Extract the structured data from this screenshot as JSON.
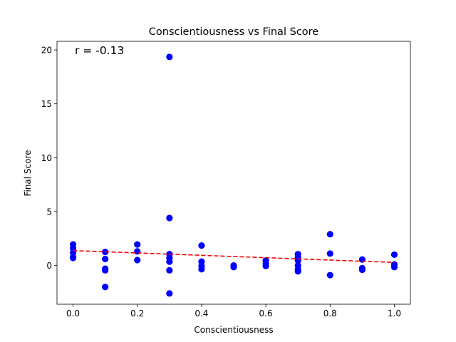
{
  "chart_data": {
    "type": "scatter",
    "title": "Conscientiousness vs Final Score",
    "xlabel": "Conscientiousness",
    "ylabel": "Final Score",
    "annotation": "r = -0.13",
    "xlim": [
      -0.05,
      1.05
    ],
    "ylim": [
      -3.6,
      20.8
    ],
    "xticks": [
      0.0,
      0.2,
      0.4,
      0.6,
      0.8,
      1.0
    ],
    "xtick_labels": [
      "0.0",
      "0.2",
      "0.4",
      "0.6",
      "0.8",
      "1.0"
    ],
    "yticks": [
      0,
      5,
      10,
      15,
      20
    ],
    "ytick_labels": [
      "0",
      "5",
      "10",
      "15",
      "20"
    ],
    "grid": false,
    "colors": {
      "points": "#0000ff",
      "trend": "#ff0000"
    },
    "points": [
      {
        "x": 0.0,
        "y": 1.95
      },
      {
        "x": 0.0,
        "y": 1.6
      },
      {
        "x": 0.0,
        "y": 1.2
      },
      {
        "x": 0.0,
        "y": 0.8
      },
      {
        "x": 0.0,
        "y": 0.7
      },
      {
        "x": 0.1,
        "y": 1.25
      },
      {
        "x": 0.1,
        "y": 0.6
      },
      {
        "x": 0.1,
        "y": -0.3
      },
      {
        "x": 0.1,
        "y": -0.45
      },
      {
        "x": 0.1,
        "y": -2.0
      },
      {
        "x": 0.2,
        "y": 1.95
      },
      {
        "x": 0.2,
        "y": 1.3
      },
      {
        "x": 0.2,
        "y": 0.5
      },
      {
        "x": 0.3,
        "y": 19.35
      },
      {
        "x": 0.3,
        "y": 4.4
      },
      {
        "x": 0.3,
        "y": 1.05
      },
      {
        "x": 0.3,
        "y": 0.7
      },
      {
        "x": 0.3,
        "y": 0.35
      },
      {
        "x": 0.3,
        "y": -0.45
      },
      {
        "x": 0.3,
        "y": -2.6
      },
      {
        "x": 0.4,
        "y": 1.85
      },
      {
        "x": 0.4,
        "y": 0.35
      },
      {
        "x": 0.4,
        "y": -0.05
      },
      {
        "x": 0.4,
        "y": -0.35
      },
      {
        "x": 0.5,
        "y": 0.0
      },
      {
        "x": 0.5,
        "y": -0.15
      },
      {
        "x": 0.6,
        "y": 0.45
      },
      {
        "x": 0.6,
        "y": 0.15
      },
      {
        "x": 0.6,
        "y": -0.05
      },
      {
        "x": 0.7,
        "y": 1.05
      },
      {
        "x": 0.7,
        "y": 0.75
      },
      {
        "x": 0.7,
        "y": 0.45
      },
      {
        "x": 0.7,
        "y": 0.0
      },
      {
        "x": 0.7,
        "y": -0.35
      },
      {
        "x": 0.7,
        "y": -0.55
      },
      {
        "x": 0.8,
        "y": 2.9
      },
      {
        "x": 0.8,
        "y": 1.1
      },
      {
        "x": 0.8,
        "y": -0.9
      },
      {
        "x": 0.9,
        "y": 0.55
      },
      {
        "x": 0.9,
        "y": -0.25
      },
      {
        "x": 0.9,
        "y": -0.4
      },
      {
        "x": 1.0,
        "y": 1.0
      },
      {
        "x": 1.0,
        "y": 0.1
      },
      {
        "x": 1.0,
        "y": -0.15
      }
    ],
    "trendline": {
      "x": [
        0.0,
        1.0
      ],
      "y": [
        1.38,
        0.28
      ]
    }
  }
}
